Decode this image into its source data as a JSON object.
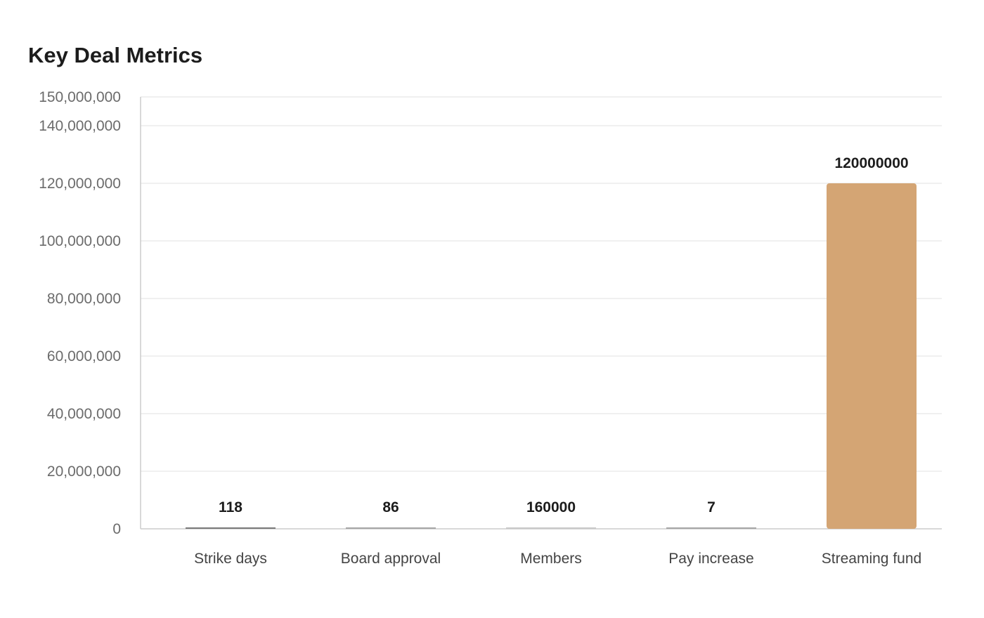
{
  "chart_data": {
    "type": "bar",
    "title": "Key Deal Metrics",
    "xlabel": "",
    "ylabel": "",
    "categories": [
      "Strike days",
      "Board approval",
      "Members",
      "Pay increase",
      "Streaming fund"
    ],
    "values": [
      118,
      86,
      160000,
      7,
      120000000
    ],
    "value_labels": [
      "118",
      "86",
      "160000",
      "7",
      "120000000"
    ],
    "ylim": [
      0,
      150000000
    ],
    "y_ticks": [
      0,
      20000000,
      40000000,
      60000000,
      80000000,
      100000000,
      120000000,
      140000000,
      150000000
    ],
    "y_tick_labels": [
      "0",
      "20,000,000",
      "40,000,000",
      "60,000,000",
      "80,000,000",
      "100,000,000",
      "120,000,000",
      "140,000,000",
      "150,000,000"
    ],
    "grid": true,
    "legend": "none",
    "bar_colors": [
      "#7a7a7a",
      "#a6a6a6",
      "#c9c9c9",
      "#a6a6a6",
      "#d4a574"
    ],
    "colors": {
      "gridline": "#ececec",
      "axis": "#cccccc",
      "title": "#1c1c1c"
    }
  }
}
